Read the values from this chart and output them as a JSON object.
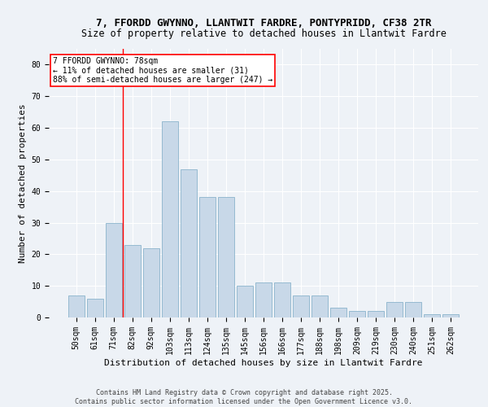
{
  "title": "7, FFORDD GWYNNO, LLANTWIT FARDRE, PONTYPRIDD, CF38 2TR",
  "subtitle": "Size of property relative to detached houses in Llantwit Fardre",
  "xlabel": "Distribution of detached houses by size in Llantwit Fardre",
  "ylabel": "Number of detached properties",
  "bar_color": "#c8d8e8",
  "bar_edge_color": "#8ab4cc",
  "background_color": "#eef2f7",
  "categories": [
    "50sqm",
    "61sqm",
    "71sqm",
    "82sqm",
    "92sqm",
    "103sqm",
    "113sqm",
    "124sqm",
    "135sqm",
    "145sqm",
    "156sqm",
    "166sqm",
    "177sqm",
    "188sqm",
    "198sqm",
    "209sqm",
    "219sqm",
    "230sqm",
    "240sqm",
    "251sqm",
    "262sqm"
  ],
  "values": [
    7,
    6,
    30,
    23,
    22,
    62,
    47,
    38,
    38,
    10,
    11,
    11,
    7,
    7,
    3,
    2,
    2,
    5,
    5,
    1,
    1
  ],
  "ylim": [
    0,
    85
  ],
  "yticks": [
    0,
    10,
    20,
    30,
    40,
    50,
    60,
    70,
    80
  ],
  "vline_x": 2.5,
  "vline_color": "red",
  "annotation_text": "7 FFORDD GWYNNO: 78sqm\n← 11% of detached houses are smaller (31)\n88% of semi-detached houses are larger (247) →",
  "annotation_box_color": "white",
  "annotation_box_edge_color": "red",
  "footer": "Contains HM Land Registry data © Crown copyright and database right 2025.\nContains public sector information licensed under the Open Government Licence v3.0.",
  "title_fontsize": 9,
  "label_fontsize": 8,
  "tick_fontsize": 7,
  "annotation_fontsize": 7,
  "footer_fontsize": 6
}
